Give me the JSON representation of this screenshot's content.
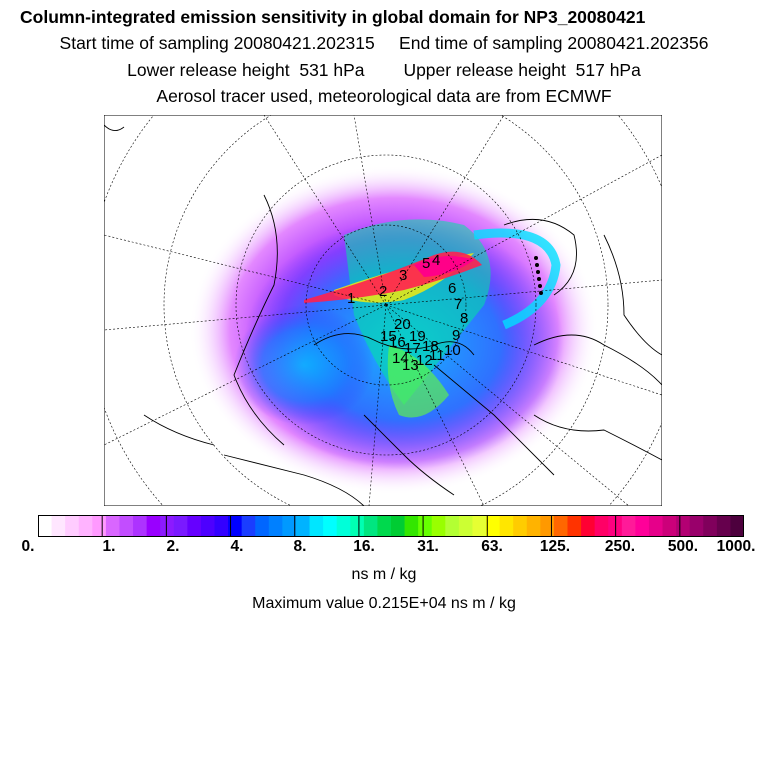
{
  "header": {
    "title": "Column-integrated emission sensitivity in global domain for NP3_20080421",
    "line2": "Start time of sampling 20080421.202315     End time of sampling 20080421.202356",
    "line3": "Lower release height  531 hPa        Upper release height  517 hPa",
    "line4": "Aerosol tracer used, meteorological data are from ECMWF"
  },
  "map": {
    "projection": "polar stereographic (north pole)",
    "track_labels": [
      "1",
      "2",
      "3",
      "4",
      "5",
      "6",
      "7",
      "8",
      "9",
      "10",
      "11",
      "12",
      "13",
      "14",
      "15",
      "16",
      "17",
      "18",
      "19",
      "20"
    ]
  },
  "colorbar": {
    "tick_labels": [
      "0.",
      "1.",
      "2.",
      "4.",
      "8.",
      "16.",
      "31.",
      "63.",
      "125.",
      "250.",
      "500.",
      "1000."
    ],
    "colors": [
      "#ffffff",
      "#ffe6ff",
      "#ffccff",
      "#ffb3ff",
      "#ff99ff",
      "#d966ff",
      "#c24dff",
      "#ad33ff",
      "#9900ff",
      "#8c1aff",
      "#7a1aff",
      "#6600ff",
      "#4d00ff",
      "#3300ff",
      "#0000ff",
      "#1a3dff",
      "#0066ff",
      "#0080ff",
      "#0099ff",
      "#00b3ff",
      "#00e6ff",
      "#00ffff",
      "#00ffd9",
      "#00ffb3",
      "#00e680",
      "#00d94d",
      "#00cc33",
      "#33e600",
      "#66ff00",
      "#99ff00",
      "#b3ff33",
      "#ccff33",
      "#e6ff33",
      "#ffff00",
      "#ffe600",
      "#ffcc00",
      "#ffb300",
      "#ff9900",
      "#ff6600",
      "#ff3300",
      "#ff0033",
      "#ff0066",
      "#ff0080",
      "#ff1a99",
      "#ff0099",
      "#e6008a",
      "#cc007a",
      "#b30073",
      "#99006b",
      "#80005c",
      "#66004d",
      "#4d003d"
    ]
  },
  "units": "ns m / kg",
  "maximum": "Maximum value  0.215E+04 ns m / kg"
}
